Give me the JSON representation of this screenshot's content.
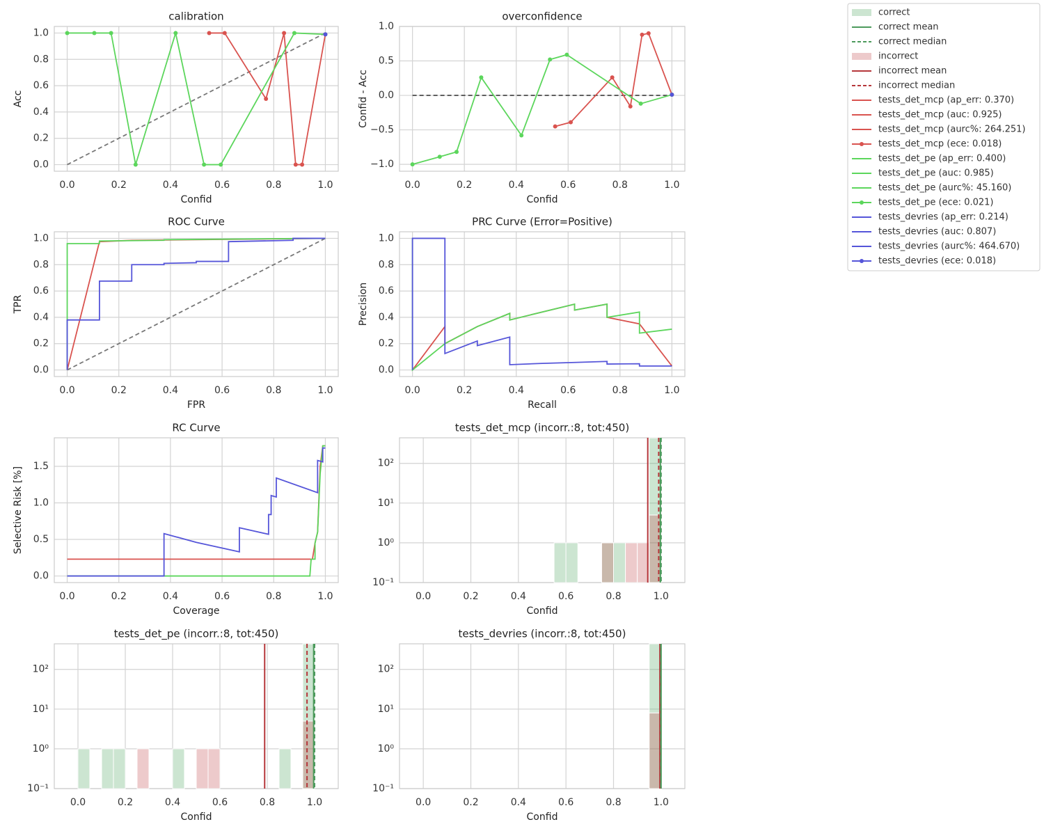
{
  "legend": {
    "entries": [
      {
        "label": "correct",
        "color": "#55a868",
        "style": "patch"
      },
      {
        "label": "correct mean",
        "color": "#4c9a5c",
        "style": "line"
      },
      {
        "label": "correct median",
        "color": "#4c9a5c",
        "style": "dashed"
      },
      {
        "label": "incorrect",
        "color": "#c44e52",
        "style": "patch"
      },
      {
        "label": "incorrect mean",
        "color": "#b5363a",
        "style": "line"
      },
      {
        "label": "incorrect median",
        "color": "#b5363a",
        "style": "dashed"
      },
      {
        "label": "tests_det_mcp (ap_err: 0.370)",
        "color": "#d9534f",
        "style": "line"
      },
      {
        "label": "tests_det_mcp (auc: 0.925)",
        "color": "#d9534f",
        "style": "line"
      },
      {
        "label": "tests_det_mcp (aurc%: 264.251)",
        "color": "#d9534f",
        "style": "line"
      },
      {
        "label": "tests_det_mcp (ece: 0.018)",
        "color": "#d9534f",
        "style": "line-marker"
      },
      {
        "label": "tests_det_pe (ap_err: 0.400)",
        "color": "#5cd65c",
        "style": "line"
      },
      {
        "label": "tests_det_pe (auc: 0.985)",
        "color": "#5cd65c",
        "style": "line"
      },
      {
        "label": "tests_det_pe (aurc%: 45.160)",
        "color": "#5cd65c",
        "style": "line"
      },
      {
        "label": "tests_det_pe (ece: 0.021)",
        "color": "#5cd65c",
        "style": "line-marker"
      },
      {
        "label": "tests_devries (ap_err: 0.214)",
        "color": "#5555d9",
        "style": "line"
      },
      {
        "label": "tests_devries (auc: 0.807)",
        "color": "#5555d9",
        "style": "line"
      },
      {
        "label": "tests_devries (aurc%: 464.670)",
        "color": "#5555d9",
        "style": "line"
      },
      {
        "label": "tests_devries (ece: 0.018)",
        "color": "#5555d9",
        "style": "line-marker"
      }
    ]
  },
  "chart_data": [
    {
      "type": "line",
      "title": "calibration",
      "xlabel": "Confid",
      "ylabel": "Acc",
      "grid": true,
      "xlim": [
        -0.05,
        1.05
      ],
      "ylim": [
        -0.05,
        1.05
      ],
      "xticks": [
        {
          "value": 0,
          "label": "0.0"
        },
        0.2,
        0.4,
        0.6,
        0.8,
        {
          "value": 1,
          "label": "1.0"
        }
      ],
      "yticks": [
        {
          "value": 0,
          "label": "0.0"
        },
        0.2,
        0.4,
        0.6,
        0.8,
        {
          "value": 1,
          "label": "1.0"
        }
      ],
      "series": [
        {
          "color": "#777777",
          "dash": true,
          "x": [
            0,
            1
          ],
          "values": [
            0,
            1
          ]
        },
        {
          "color": "#d9534f",
          "marker": true,
          "x": [
            0.55,
            0.61,
            0.77,
            0.84,
            0.885,
            0.91,
            1.0
          ],
          "values": [
            1,
            1,
            0.5,
            1,
            0,
            0,
            0.99
          ]
        },
        {
          "color": "#5cd65c",
          "marker": true,
          "x": [
            0,
            0.105,
            0.17,
            0.265,
            0.42,
            0.53,
            0.595,
            0.88,
            1.0
          ],
          "values": [
            1,
            1,
            1,
            0,
            1,
            0,
            0,
            1,
            0.99
          ]
        },
        {
          "color": "#5555d9",
          "marker": true,
          "x": [
            1.0
          ],
          "values": [
            0.99
          ]
        }
      ]
    },
    {
      "type": "line",
      "title": "overconfidence",
      "xlabel": "Confid",
      "ylabel": "Confid - Acc",
      "grid": true,
      "xlim": [
        -0.05,
        1.05
      ],
      "ylim": [
        -1.1,
        1.0
      ],
      "xticks": [
        {
          "value": 0,
          "label": "0.0"
        },
        0.2,
        0.4,
        0.6,
        0.8,
        {
          "value": 1,
          "label": "1.0"
        }
      ],
      "yticks": [
        {
          "value": -1,
          "label": "−1.0"
        },
        {
          "value": -0.5,
          "label": "−0.5"
        },
        {
          "value": 0,
          "label": "0.0"
        },
        0.5,
        {
          "value": 1,
          "label": "1.0"
        }
      ],
      "series": [
        {
          "color": "#555555",
          "dash": true,
          "x": [
            0,
            1
          ],
          "values": [
            0,
            0
          ]
        },
        {
          "color": "#d9534f",
          "marker": true,
          "x": [
            0.55,
            0.61,
            0.77,
            0.84,
            0.885,
            0.91,
            1.0
          ],
          "values": [
            -0.45,
            -0.39,
            0.26,
            -0.16,
            0.88,
            0.9,
            0.01
          ]
        },
        {
          "color": "#5cd65c",
          "marker": true,
          "x": [
            0,
            0.105,
            0.17,
            0.265,
            0.42,
            0.53,
            0.595,
            0.88,
            1.0
          ],
          "values": [
            -1,
            -0.89,
            -0.82,
            0.26,
            -0.58,
            0.52,
            0.59,
            -0.12,
            0.01
          ]
        },
        {
          "color": "#5555d9",
          "marker": true,
          "x": [
            1.0
          ],
          "values": [
            0.01
          ]
        }
      ]
    },
    {
      "type": "line",
      "title": "ROC Curve",
      "xlabel": "FPR",
      "ylabel": "TPR",
      "grid": true,
      "xlim": [
        -0.05,
        1.05
      ],
      "ylim": [
        -0.05,
        1.05
      ],
      "xticks": [
        {
          "value": 0,
          "label": "0.0"
        },
        0.2,
        0.4,
        0.6,
        0.8,
        {
          "value": 1,
          "label": "1.0"
        }
      ],
      "yticks": [
        {
          "value": 0,
          "label": "0.0"
        },
        0.2,
        0.4,
        0.6,
        0.8,
        {
          "value": 1,
          "label": "1.0"
        }
      ],
      "series": [
        {
          "color": "#777777",
          "dash": true,
          "x": [
            0,
            1
          ],
          "values": [
            0,
            1
          ]
        },
        {
          "color": "#d9534f",
          "x": [
            0,
            0.125,
            0.25,
            1
          ],
          "values": [
            0,
            0.975,
            0.985,
            1
          ]
        },
        {
          "color": "#5cd65c",
          "x": [
            0,
            0,
            0.125,
            0.125,
            0.375,
            0.375,
            1
          ],
          "values": [
            0,
            0.96,
            0.96,
            0.98,
            0.985,
            0.99,
            1
          ]
        },
        {
          "color": "#5555d9",
          "x": [
            0,
            0,
            0.125,
            0.125,
            0.25,
            0.25,
            0.375,
            0.375,
            0.5,
            0.5,
            0.625,
            0.625,
            0.875,
            0.875,
            1
          ],
          "values": [
            0,
            0.38,
            0.38,
            0.675,
            0.675,
            0.8,
            0.8,
            0.81,
            0.815,
            0.825,
            0.825,
            0.975,
            0.985,
            1,
            1
          ]
        }
      ]
    },
    {
      "type": "line",
      "title": "PRC Curve (Error=Positive)",
      "xlabel": "Recall",
      "ylabel": "Precision",
      "grid": true,
      "xlim": [
        -0.05,
        1.05
      ],
      "ylim": [
        -0.05,
        1.05
      ],
      "xticks": [
        {
          "value": 0,
          "label": "0.0"
        },
        0.2,
        0.4,
        0.6,
        0.8,
        {
          "value": 1,
          "label": "1.0"
        }
      ],
      "yticks": [
        {
          "value": 0,
          "label": "0.0"
        },
        0.2,
        0.4,
        0.6,
        0.8,
        {
          "value": 1,
          "label": "1.0"
        }
      ],
      "series": [
        {
          "color": "#d9534f",
          "x": [
            0,
            0.125,
            0.125,
            0.25,
            0.375,
            0.375,
            0.625,
            0.625,
            0.75,
            0.75,
            0.875,
            1.0
          ],
          "values": [
            0,
            0.33,
            0.2,
            0.33,
            0.43,
            0.38,
            0.5,
            0.455,
            0.5,
            0.4,
            0.35,
            0.03
          ]
        },
        {
          "color": "#5cd65c",
          "x": [
            0,
            0,
            0.125,
            0.25,
            0.375,
            0.375,
            0.625,
            0.625,
            0.75,
            0.75,
            0.875,
            0.875,
            1.0
          ],
          "values": [
            1,
            0,
            0.2,
            0.33,
            0.43,
            0.38,
            0.5,
            0.455,
            0.5,
            0.4,
            0.44,
            0.28,
            0.31
          ]
        },
        {
          "color": "#5555d9",
          "x": [
            0,
            0,
            0.125,
            0.125,
            0.25,
            0.25,
            0.375,
            0.375,
            0.5,
            0.625,
            0.75,
            0.75,
            0.875,
            0.875,
            1.0
          ],
          "values": [
            0,
            1,
            1,
            0.125,
            0.22,
            0.185,
            0.25,
            0.04,
            0.05,
            0.057,
            0.065,
            0.045,
            0.047,
            0.03,
            0.03
          ]
        }
      ]
    },
    {
      "type": "line",
      "title": "RC Curve",
      "xlabel": "Coverage",
      "ylabel": "Selective Risk [%]",
      "grid": true,
      "xlim": [
        -0.05,
        1.05
      ],
      "ylim": [
        -0.09,
        1.89
      ],
      "xticks": [
        {
          "value": 0,
          "label": "0.0"
        },
        0.2,
        0.4,
        0.6,
        0.8,
        {
          "value": 1,
          "label": "1.0"
        }
      ],
      "yticks": [
        {
          "value": 0,
          "label": "0.0"
        },
        0.5,
        {
          "value": 1,
          "label": "1.0"
        },
        1.5
      ],
      "series": [
        {
          "color": "#d9534f",
          "x": [
            0,
            0.95,
            0.96,
            0.97,
            0.98,
            0.99,
            1.0
          ],
          "values": [
            0.23,
            0.23,
            0.45,
            0.6,
            1.5,
            1.78,
            1.78
          ]
        },
        {
          "color": "#5cd65c",
          "x": [
            0,
            0.94,
            0.945,
            0.96,
            0.96,
            0.97,
            0.98,
            0.985,
            0.99,
            1.0
          ],
          "values": [
            0,
            0,
            0.23,
            0.23,
            0.45,
            0.6,
            1.4,
            1.58,
            1.78,
            1.78
          ]
        },
        {
          "color": "#5555d9",
          "x": [
            0,
            0.375,
            0.375,
            0.5,
            0.667,
            0.667,
            0.78,
            0.78,
            0.79,
            0.79,
            0.81,
            0.81,
            0.97,
            0.97,
            0.99,
            0.99,
            1.0
          ],
          "values": [
            0,
            0,
            0.58,
            0.46,
            0.33,
            0.66,
            0.57,
            0.84,
            0.84,
            1.1,
            1.08,
            1.34,
            1.14,
            1.58,
            1.56,
            1.75,
            1.75
          ]
        }
      ]
    },
    {
      "type": "histogram",
      "title": "tests_det_mcp (incorr.:8, tot:450)",
      "xlabel": "Confid",
      "grid": true,
      "log": true,
      "xlim": [
        -0.1,
        1.1
      ],
      "ylim": [
        0.1,
        440
      ],
      "xticks": [
        {
          "value": 0,
          "label": "0.0"
        },
        0.2,
        0.4,
        0.6,
        0.8,
        {
          "value": 1,
          "label": "1.0"
        }
      ],
      "yticks": [
        {
          "value": 0.1,
          "label": "10⁻¹"
        },
        {
          "value": 1,
          "label": "10⁰"
        },
        {
          "value": 10,
          "label": "10¹"
        },
        {
          "value": 100,
          "label": "10²"
        }
      ],
      "bins": [
        0,
        0.05,
        0.1,
        0.15,
        0.2,
        0.25,
        0.3,
        0.35,
        0.4,
        0.45,
        0.5,
        0.55,
        0.6,
        0.65,
        0.7,
        0.75,
        0.8,
        0.85,
        0.9,
        0.95,
        1.0
      ],
      "series": [
        {
          "color": "#55a868",
          "values": [
            0,
            0,
            0,
            0,
            0,
            0,
            0,
            0,
            0,
            0,
            0,
            1,
            1,
            0,
            0,
            1,
            1,
            0,
            0,
            438
          ]
        },
        {
          "color": "#c44e52",
          "values": [
            0,
            0,
            0,
            0,
            0,
            0,
            0,
            0,
            0,
            0,
            0,
            0,
            0,
            0,
            0,
            1,
            0,
            1,
            1,
            5
          ]
        }
      ],
      "vlines": [
        {
          "x": 0.944,
          "color": "#b5363a",
          "dash": false
        },
        {
          "x": 0.99,
          "color": "#b5363a",
          "dash": true
        },
        {
          "x": 0.997,
          "color": "#4c9a5c",
          "dash": false
        },
        {
          "x": 1.0,
          "color": "#4c9a5c",
          "dash": true
        }
      ]
    },
    {
      "type": "histogram",
      "title": "tests_det_pe (incorr.:8, tot:450)",
      "xlabel": "Confid",
      "grid": true,
      "log": true,
      "xlim": [
        -0.1,
        1.1
      ],
      "ylim": [
        0.1,
        440
      ],
      "xticks": [
        {
          "value": 0,
          "label": "0.0"
        },
        0.2,
        0.4,
        0.6,
        0.8,
        {
          "value": 1,
          "label": "1.0"
        }
      ],
      "yticks": [
        {
          "value": 0.1,
          "label": "10⁻¹"
        },
        {
          "value": 1,
          "label": "10⁰"
        },
        {
          "value": 10,
          "label": "10¹"
        },
        {
          "value": 100,
          "label": "10²"
        }
      ],
      "bins": [
        0,
        0.05,
        0.1,
        0.15,
        0.2,
        0.25,
        0.3,
        0.35,
        0.4,
        0.45,
        0.5,
        0.55,
        0.6,
        0.65,
        0.7,
        0.75,
        0.8,
        0.85,
        0.9,
        0.95,
        1.0
      ],
      "series": [
        {
          "color": "#55a868",
          "values": [
            1,
            0,
            1,
            1,
            0,
            0,
            0,
            0,
            1,
            0,
            0,
            0,
            0,
            0,
            0,
            0,
            0,
            1,
            0,
            437
          ]
        },
        {
          "color": "#c44e52",
          "values": [
            0,
            0,
            0,
            0,
            0,
            1,
            0,
            0,
            0,
            0,
            1,
            1,
            0,
            0,
            0,
            0,
            0,
            0,
            0,
            5
          ]
        }
      ],
      "vlines": [
        {
          "x": 0.789,
          "color": "#b5363a",
          "dash": false
        },
        {
          "x": 0.968,
          "color": "#b5363a",
          "dash": true
        },
        {
          "x": 0.996,
          "color": "#4c9a5c",
          "dash": false
        },
        {
          "x": 1.0,
          "color": "#4c9a5c",
          "dash": true
        }
      ]
    },
    {
      "type": "histogram",
      "title": "tests_devries (incorr.:8, tot:450)",
      "xlabel": "Confid",
      "grid": true,
      "log": true,
      "xlim": [
        -0.1,
        1.1
      ],
      "ylim": [
        0.1,
        440
      ],
      "xticks": [
        {
          "value": 0,
          "label": "0.0"
        },
        0.2,
        0.4,
        0.6,
        0.8,
        {
          "value": 1,
          "label": "1.0"
        }
      ],
      "yticks": [
        {
          "value": 0.1,
          "label": "10⁻¹"
        },
        {
          "value": 1,
          "label": "10⁰"
        },
        {
          "value": 10,
          "label": "10¹"
        },
        {
          "value": 100,
          "label": "10²"
        }
      ],
      "bins": [
        0,
        0.05,
        0.1,
        0.15,
        0.2,
        0.25,
        0.3,
        0.35,
        0.4,
        0.45,
        0.5,
        0.55,
        0.6,
        0.65,
        0.7,
        0.75,
        0.8,
        0.85,
        0.9,
        0.95,
        1.0
      ],
      "series": [
        {
          "color": "#55a868",
          "values": [
            0,
            0,
            0,
            0,
            0,
            0,
            0,
            0,
            0,
            0,
            0,
            0,
            0,
            0,
            0,
            0,
            0,
            0,
            0,
            442
          ]
        },
        {
          "color": "#c44e52",
          "values": [
            0,
            0,
            0,
            0,
            0,
            0,
            0,
            0,
            0,
            0,
            0,
            0,
            0,
            0,
            0,
            0,
            0,
            0,
            0,
            8
          ]
        }
      ],
      "vlines": [
        {
          "x": 0.995,
          "color": "#b5363a",
          "dash": false
        },
        {
          "x": 0.999,
          "color": "#4c9a5c",
          "dash": true
        },
        {
          "x": 1.0,
          "color": "#4c9a5c",
          "dash": false
        }
      ]
    }
  ]
}
